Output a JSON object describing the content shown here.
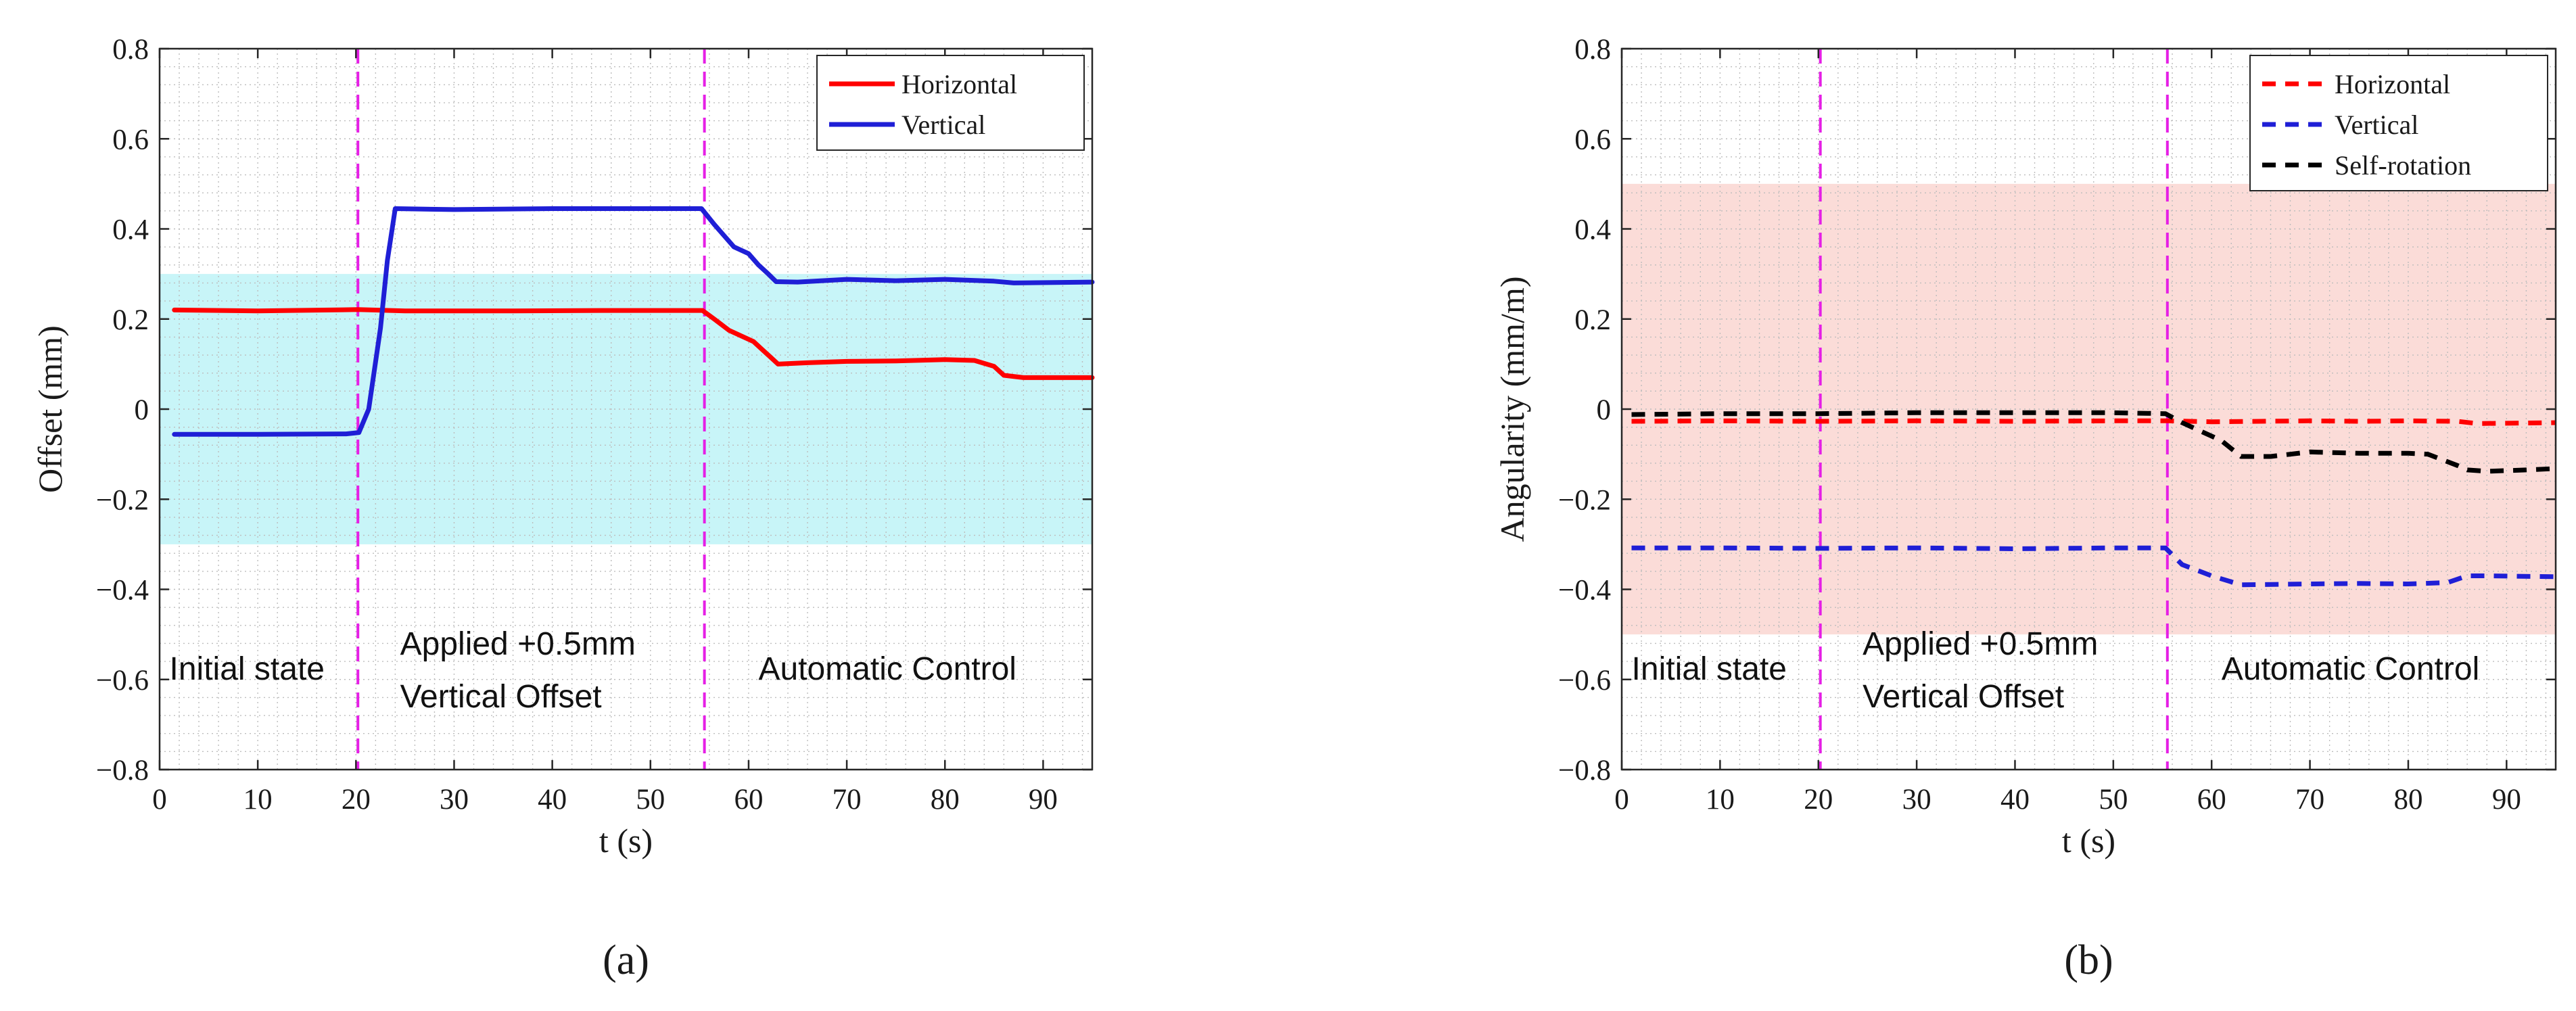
{
  "colors": {
    "band_a": "#c8f5f8",
    "band_b": "#fbdcd8",
    "marker_lines": "#e51fe5",
    "horizontal": "#ff0000",
    "vertical": "#1f1fd6",
    "self_rotation": "#000000",
    "grid": "#bdbdbd"
  },
  "chart_data": [
    {
      "type": "line",
      "panel_label": "(a)",
      "xlabel": "t (s)",
      "ylabel": "Offset (mm)",
      "xlim": [
        0,
        95
      ],
      "ylim": [
        -0.8,
        0.8
      ],
      "xticks": [
        0,
        10,
        20,
        30,
        40,
        50,
        60,
        70,
        80,
        90
      ],
      "yticks": [
        0.8,
        0.6,
        0.4,
        0.2,
        0,
        -0.2,
        -0.4,
        -0.6,
        -0.8
      ],
      "ytick_labels": [
        "0.8",
        "0.6",
        "0.4",
        "0.2",
        "0",
        "−0.2",
        "−0.4",
        "−0.6",
        "−0.8"
      ],
      "grid": "on (major and minor, dotted)",
      "legend_position": "top-right",
      "band": {
        "y_from": -0.3,
        "y_to": 0.3
      },
      "markers": [
        20.2,
        55.5
      ],
      "annotations": [
        {
          "lines": [
            "Initial state"
          ],
          "x": 1,
          "y": -0.6
        },
        {
          "lines": [
            "Applied +0.5mm",
            "Vertical Offset"
          ],
          "x": 24.5,
          "y": -0.545
        },
        {
          "lines": [
            "Automatic Control"
          ],
          "x": 61,
          "y": -0.6
        }
      ],
      "series": [
        {
          "name": "Horizontal",
          "style": "solid",
          "color": "#ff0000",
          "x": [
            1.5,
            10,
            20.2,
            25,
            35,
            45,
            55.3,
            56.5,
            58,
            59.5,
            60.5,
            61.5,
            63,
            66,
            70,
            75,
            80,
            83,
            85,
            86,
            88,
            95
          ],
          "y": [
            0.22,
            0.218,
            0.221,
            0.218,
            0.218,
            0.219,
            0.219,
            0.2,
            0.175,
            0.16,
            0.15,
            0.13,
            0.1,
            0.103,
            0.106,
            0.107,
            0.11,
            0.108,
            0.095,
            0.075,
            0.07,
            0.07
          ]
        },
        {
          "name": "Vertical",
          "style": "solid",
          "color": "#1f1fd6",
          "x": [
            1.5,
            10,
            19,
            20.3,
            21.3,
            22.5,
            23.2,
            24,
            30,
            40,
            50,
            55.2,
            56.5,
            57.5,
            58.5,
            60,
            61,
            62,
            62.8,
            65,
            70,
            75,
            80,
            85,
            87,
            95
          ],
          "y": [
            -0.056,
            -0.056,
            -0.055,
            -0.052,
            0.0,
            0.18,
            0.33,
            0.445,
            0.443,
            0.445,
            0.445,
            0.445,
            0.41,
            0.385,
            0.36,
            0.345,
            0.32,
            0.3,
            0.283,
            0.282,
            0.288,
            0.285,
            0.288,
            0.284,
            0.28,
            0.282
          ]
        }
      ]
    },
    {
      "type": "line",
      "panel_label": "(b)",
      "xlabel": "t (s)",
      "ylabel": "Angularity (mm/m)",
      "xlim": [
        0,
        95
      ],
      "ylim": [
        -0.8,
        0.8
      ],
      "xticks": [
        0,
        10,
        20,
        30,
        40,
        50,
        60,
        70,
        80,
        90
      ],
      "yticks": [
        0.8,
        0.6,
        0.4,
        0.2,
        0,
        -0.2,
        -0.4,
        -0.6,
        -0.8
      ],
      "ytick_labels": [
        "0.8",
        "0.6",
        "0.4",
        "0.2",
        "0",
        "−0.2",
        "−0.4",
        "−0.6",
        "−0.8"
      ],
      "grid": "on (major and minor, dotted)",
      "legend_position": "top-right",
      "band": {
        "y_from": -0.5,
        "y_to": 0.5
      },
      "markers": [
        20.2,
        55.5
      ],
      "annotations": [
        {
          "lines": [
            "Initial state"
          ],
          "x": 1,
          "y": -0.6
        },
        {
          "lines": [
            "Applied +0.5mm",
            "Vertical Offset"
          ],
          "x": 24.5,
          "y": -0.545
        },
        {
          "lines": [
            "Automatic Control"
          ],
          "x": 61,
          "y": -0.6
        }
      ],
      "series": [
        {
          "name": "Horizontal",
          "style": "dashed",
          "color": "#ff0000",
          "x": [
            1,
            10,
            20,
            30,
            40,
            50,
            55.5,
            60,
            65,
            70,
            75,
            80,
            85,
            87,
            95
          ],
          "y": [
            -0.027,
            -0.026,
            -0.027,
            -0.026,
            -0.027,
            -0.026,
            -0.026,
            -0.028,
            -0.027,
            -0.026,
            -0.027,
            -0.026,
            -0.027,
            -0.032,
            -0.03
          ]
        },
        {
          "name": "Vertical",
          "style": "dashed",
          "color": "#1f1fd6",
          "x": [
            1,
            10,
            20,
            30,
            40,
            50,
            55.3,
            57,
            60,
            63,
            70,
            75,
            80,
            84,
            86,
            88,
            95
          ],
          "y": [
            -0.308,
            -0.308,
            -0.309,
            -0.308,
            -0.31,
            -0.308,
            -0.308,
            -0.345,
            -0.37,
            -0.39,
            -0.388,
            -0.387,
            -0.388,
            -0.385,
            -0.37,
            -0.37,
            -0.372
          ]
        },
        {
          "name": "Self-rotation",
          "style": "dashed",
          "color": "#000000",
          "x": [
            1,
            10,
            20,
            30,
            40,
            50,
            55.3,
            57,
            59,
            61,
            63,
            66,
            70,
            75,
            80,
            82,
            85,
            86,
            88,
            92,
            95
          ],
          "y": [
            -0.012,
            -0.01,
            -0.01,
            -0.008,
            -0.008,
            -0.008,
            -0.01,
            -0.03,
            -0.05,
            -0.07,
            -0.105,
            -0.105,
            -0.095,
            -0.098,
            -0.098,
            -0.1,
            -0.125,
            -0.135,
            -0.138,
            -0.135,
            -0.132
          ]
        }
      ]
    }
  ]
}
